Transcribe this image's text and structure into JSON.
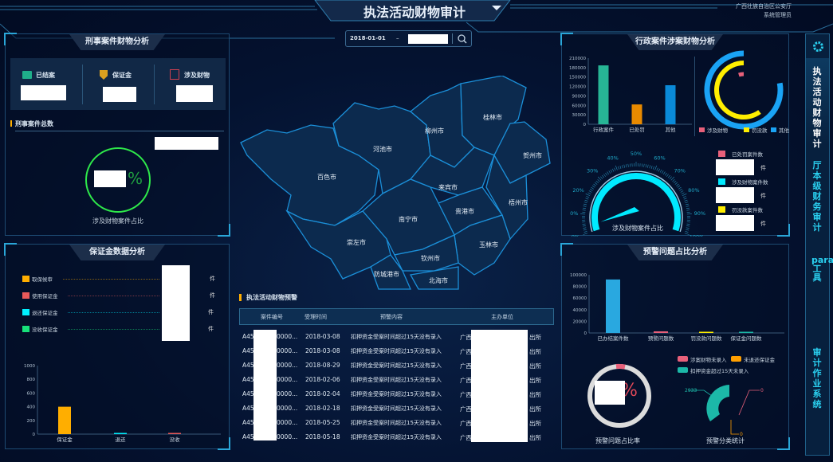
{
  "header": {
    "title": "执法活动财物审计",
    "org": "广西壮族自治区公安厅",
    "user": "系统管理员",
    "dropdown_icon": "caret-down"
  },
  "date_range": {
    "start": "2018-01-01",
    "separator": "–",
    "search_icon": "search"
  },
  "criminal": {
    "title": "刑事案件财物分析",
    "stats": [
      {
        "label": "已结案",
        "icon": "folder-stack"
      },
      {
        "label": "保证金",
        "icon": "shield-yen"
      },
      {
        "label": "涉及财物",
        "icon": "yen-box"
      }
    ],
    "total_label": "刑事案件总数",
    "percent_suffix": "%",
    "ring_label": "涉及财物案件占比",
    "ring_color": "#2ee84a"
  },
  "bail": {
    "title": "保证金数据分析",
    "legend": [
      {
        "label": "取保候审",
        "color": "#ffae00",
        "unit": "件"
      },
      {
        "label": "使用保证金",
        "color": "#e85a5a",
        "unit": "件"
      },
      {
        "label": "退还保证金",
        "color": "#00f0ff",
        "unit": "件"
      },
      {
        "label": "没收保证金",
        "color": "#17e07a",
        "unit": "件"
      }
    ]
  },
  "map": {
    "cities": [
      "桂林市",
      "柳州市",
      "河池市",
      "贺州市",
      "百色市",
      "来宾市",
      "梧州市",
      "贵港市",
      "南宁市",
      "崇左市",
      "玉林市",
      "钦州市",
      "防城港市",
      "北海市"
    ]
  },
  "warning_table": {
    "title": "执法活动财物预警",
    "columns": [
      "案件编号",
      "受理时间",
      "预警内容",
      "主办单位"
    ],
    "rows": [
      [
        "A45",
        "0000...",
        "2018-03-08",
        "扣押资金受案时间超过15天没有录入",
        "广西",
        "出所"
      ],
      [
        "A45",
        "0000...",
        "2018-03-08",
        "扣押资金受案时间超过15天没有录入",
        "广西",
        "出所"
      ],
      [
        "A45",
        "0000...",
        "2018-08-29",
        "扣押资金受案时间超过15天没有录入",
        "广西",
        "出所"
      ],
      [
        "A45",
        "0000...",
        "2018-02-06",
        "扣押资金受案时间超过15天没有录入",
        "广西",
        "出所"
      ],
      [
        "A45",
        "0000...",
        "2018-02-04",
        "扣押资金受案时间超过15天没有录入",
        "广西",
        "出所"
      ],
      [
        "A45",
        "0000...",
        "2018-02-18",
        "扣押资金受案时间超过15天没有录入",
        "广西",
        "出所"
      ],
      [
        "A45",
        "0000...",
        "2018-05-25",
        "扣押资金受案时间超过15天没有录入",
        "广西",
        "出所"
      ],
      [
        "A45",
        "0000...",
        "2018-05-18",
        "扣押资金受案时间超过15天没有录入",
        "广西",
        "出所"
      ]
    ]
  },
  "admin": {
    "title": "行政案件涉案财物分析",
    "legend_right": [
      {
        "label": "已处罚案件数",
        "color": "#e8607a",
        "unit": "件"
      },
      {
        "label": "涉及财物案件数",
        "color": "#00eaff",
        "unit": "件"
      },
      {
        "label": "罚没款案件数",
        "color": "#ffee00",
        "unit": "件"
      }
    ],
    "gauge_label": "涉及财物案件占比"
  },
  "warning": {
    "title": "预警问题占比分析",
    "donut_label": "预警问题占比率",
    "donut_visible_text": "7%",
    "pie_label": "预警分类统计",
    "pie_legend": [
      {
        "label": "涉案财物未录入",
        "color": "#e8607a"
      },
      {
        "label": "未退还保证金",
        "color": "#ff9f00"
      },
      {
        "label": "扣押资金超过15天未录入",
        "color": "#1cb8a8"
      }
    ],
    "pie_values": [
      "2933",
      "0",
      "0"
    ]
  },
  "sidebar": {
    "settings_icon": "gear",
    "items": [
      {
        "label": "执法活动财物审计",
        "active": true
      },
      {
        "label": "厅本级财务审计"
      },
      {
        "label": "parawork工具"
      },
      {
        "label": "审计作业系统"
      }
    ]
  },
  "chart_data": [
    {
      "type": "bar",
      "id": "bail",
      "categories": [
        "保证金",
        "退还",
        "没收"
      ],
      "values": [
        400,
        15,
        2
      ],
      "ylim": [
        0,
        1000
      ],
      "yticks": [
        0,
        200,
        400,
        600,
        800,
        1000
      ],
      "colors": [
        "#ffae00",
        "#00f0ff",
        "#e85a5a"
      ]
    },
    {
      "type": "bar",
      "id": "admin",
      "categories": [
        "行政案件",
        "已处罚",
        "其他"
      ],
      "values": [
        187000,
        63000,
        124000
      ],
      "ylim": [
        0,
        210000
      ],
      "yticks": [
        0,
        30000,
        60000,
        90000,
        120000,
        150000,
        180000,
        210000
      ],
      "colors": [
        "#27b595",
        "#e88a00",
        "#0a8ad8"
      ]
    },
    {
      "type": "pie",
      "id": "admin-rings",
      "series": [
        {
          "name": "涉及财物",
          "color": "#e8607a",
          "fraction": 0.03
        },
        {
          "name": "罚没款",
          "color": "#ffee00",
          "fraction": 0.6
        },
        {
          "name": "其他",
          "color": "#1aa3f5",
          "fraction": 0.78
        }
      ]
    },
    {
      "type": "gauge",
      "id": "admin-gauge",
      "ticks": [
        "0%",
        "10%",
        "20%",
        "30%",
        "40%",
        "50%",
        "60%",
        "70%",
        "80%",
        "90%",
        "100%"
      ],
      "value_percent": 5
    },
    {
      "type": "bar",
      "id": "warning",
      "categories": [
        "已办结案件数",
        "预警问题数",
        "罚没款问题数",
        "保证金问题数"
      ],
      "values": [
        92000,
        2800,
        2000,
        0
      ],
      "ylim": [
        0,
        100000
      ],
      "yticks": [
        0,
        20000,
        40000,
        60000,
        80000,
        100000
      ],
      "colors": [
        "#29a8e0",
        "#e8607a",
        "#ffee00",
        "#1cb8a8"
      ]
    }
  ]
}
